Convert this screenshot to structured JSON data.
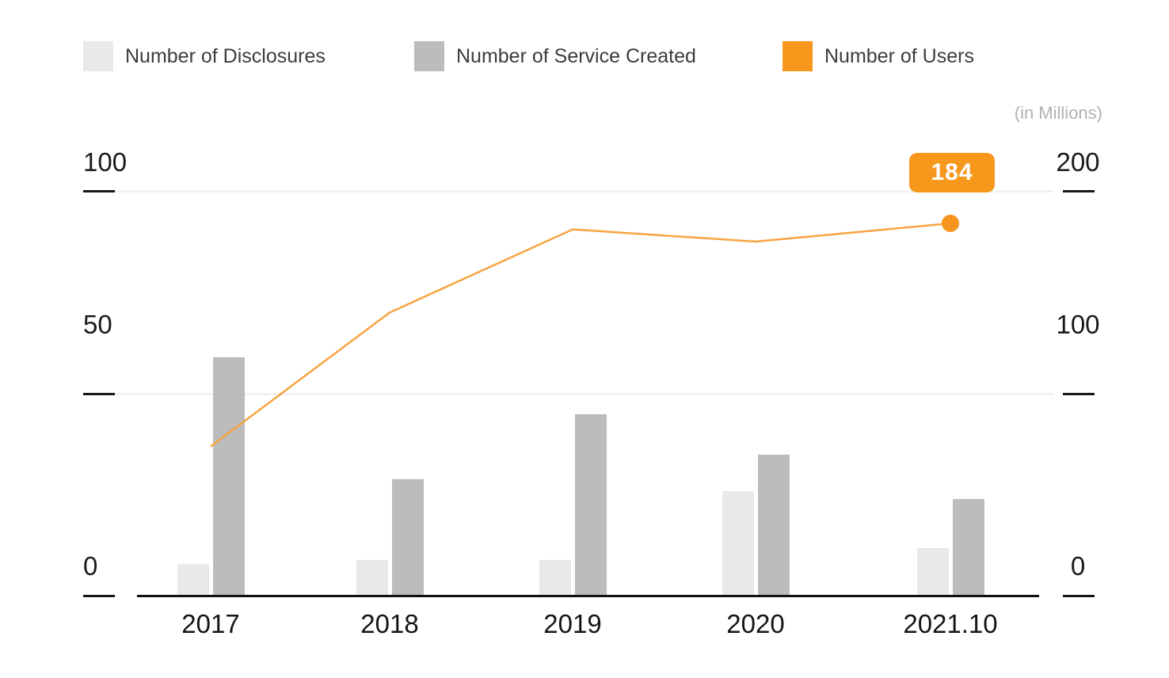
{
  "legend": [
    {
      "label": "Number of Disclosures",
      "color": "#e9e9e9"
    },
    {
      "label": "Number of Service Created",
      "color": "#bcbcbc"
    },
    {
      "label": "Number of Users",
      "color": "#f7981d"
    }
  ],
  "chart_data": {
    "type": "bar",
    "subtype": "grouped bars with overlay line on secondary axis",
    "categories": [
      "2017",
      "2018",
      "2019",
      "2020",
      "2021.10"
    ],
    "series": [
      {
        "name": "Number of Disclosures",
        "type": "bar",
        "axis": "left",
        "color": "#e9e9e9",
        "values": [
          8,
          9,
          9,
          26,
          12
        ]
      },
      {
        "name": "Number of Service Created",
        "type": "bar",
        "axis": "left",
        "color": "#bcbcbc",
        "values": [
          59,
          29,
          45,
          35,
          24
        ]
      },
      {
        "name": "Number of Users",
        "type": "line",
        "axis": "right",
        "color": "#f7a341",
        "dot_color": "#f7941d",
        "values": [
          74,
          140,
          181,
          175,
          184
        ]
      }
    ],
    "left_axis": {
      "ticks": [
        "100",
        "50",
        "0"
      ],
      "range": [
        0,
        100
      ]
    },
    "right_axis": {
      "ticks": [
        "200",
        "100",
        "0"
      ],
      "range": [
        0,
        200
      ]
    },
    "unit_note": "(in Millions)",
    "annotation": {
      "label": "184",
      "category": "2021.10",
      "series": "Number of Users"
    },
    "grid": true,
    "legend_position": "top"
  }
}
